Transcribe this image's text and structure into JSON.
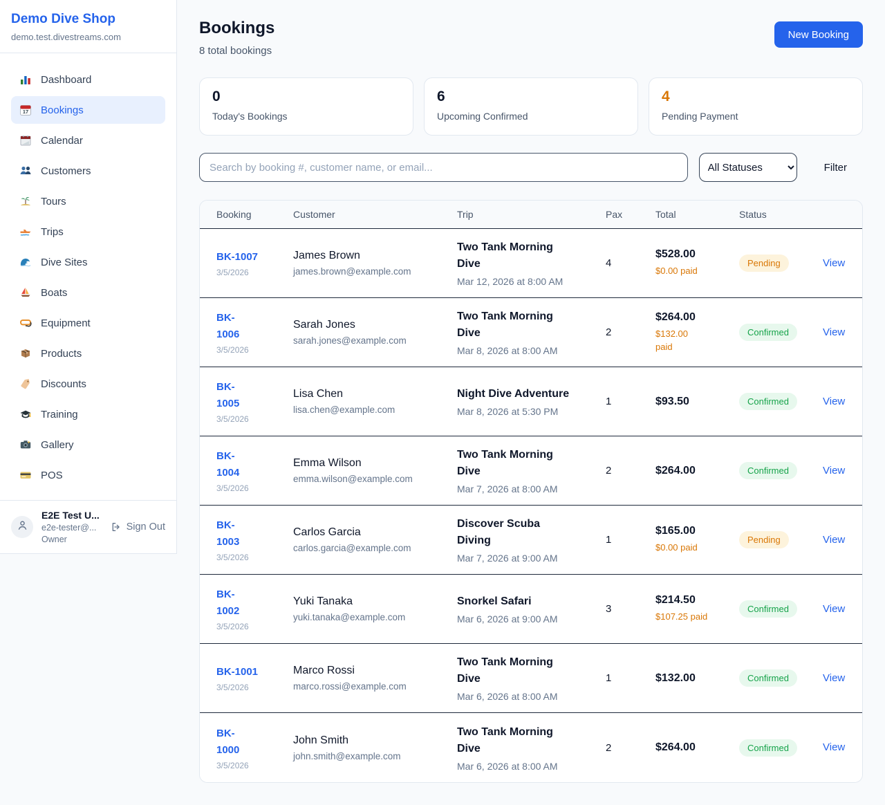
{
  "colors": {
    "accent_blue": "#2563eb",
    "pending_orange": "#d97706",
    "confirmed_green": "#16a34a"
  },
  "sidebar": {
    "brand": {
      "name": "Demo Dive Shop",
      "domain": "demo.test.divestreams.com"
    },
    "nav": [
      {
        "label": "Dashboard",
        "icon": "bar-chart-icon",
        "active": false
      },
      {
        "label": "Bookings",
        "icon": "calendar-icon",
        "active": true
      },
      {
        "label": "Calendar",
        "icon": "spiral-calendar-icon",
        "active": false
      },
      {
        "label": "Customers",
        "icon": "people-icon",
        "active": false
      },
      {
        "label": "Tours",
        "icon": "island-icon",
        "active": false
      },
      {
        "label": "Trips",
        "icon": "speedboat-icon",
        "active": false
      },
      {
        "label": "Dive Sites",
        "icon": "wave-icon",
        "active": false
      },
      {
        "label": "Boats",
        "icon": "sailboat-icon",
        "active": false
      },
      {
        "label": "Equipment",
        "icon": "diving-mask-icon",
        "active": false
      },
      {
        "label": "Products",
        "icon": "package-icon",
        "active": false
      },
      {
        "label": "Discounts",
        "icon": "label-tag-icon",
        "active": false
      },
      {
        "label": "Training",
        "icon": "graduation-cap-icon",
        "active": false
      },
      {
        "label": "Gallery",
        "icon": "camera-icon",
        "active": false
      },
      {
        "label": "POS",
        "icon": "credit-card-icon",
        "active": false
      }
    ],
    "user": {
      "name": "E2E Test U...",
      "email": "e2e-tester@...",
      "role": "Owner",
      "sign_out_label": "Sign Out"
    }
  },
  "header": {
    "title": "Bookings",
    "subtitle": "8 total bookings",
    "new_booking_label": "New Booking"
  },
  "stats": [
    {
      "value": "0",
      "label": "Today's Bookings",
      "value_color": "#0f172a"
    },
    {
      "value": "6",
      "label": "Upcoming Confirmed",
      "value_color": "#0f172a"
    },
    {
      "value": "4",
      "label": "Pending Payment",
      "value_color": "#d97706"
    }
  ],
  "filters": {
    "search_placeholder": "Search by booking #, customer name, or email...",
    "status_selected": "All Statuses",
    "filter_label": "Filter"
  },
  "table": {
    "columns": [
      "Booking",
      "Customer",
      "Trip",
      "Pax",
      "Total",
      "Status",
      ""
    ],
    "rows": [
      {
        "id": "BK-1007",
        "date": "3/5/2026",
        "customer": "James Brown",
        "email": "james.brown@example.com",
        "trip": "Two Tank Morning\nDive",
        "trip_datetime": "Mar 12, 2026 at 8:00 AM",
        "pax": "4",
        "total": "$528.00",
        "paid": "$0.00 paid",
        "status": "Pending",
        "view_label": "View"
      },
      {
        "id": "BK-\n1006",
        "date": "3/5/2026",
        "customer": "Sarah Jones",
        "email": "sarah.jones@example.com",
        "trip": "Two Tank Morning\nDive",
        "trip_datetime": "Mar 8, 2026 at 8:00 AM",
        "pax": "2",
        "total": "$264.00",
        "paid": "$132.00\npaid",
        "status": "Confirmed",
        "view_label": "View"
      },
      {
        "id": "BK-\n1005",
        "date": "3/5/2026",
        "customer": "Lisa Chen",
        "email": "lisa.chen@example.com",
        "trip": "Night Dive Adventure",
        "trip_datetime": "Mar 8, 2026 at 5:30 PM",
        "pax": "1",
        "total": "$93.50",
        "paid": "",
        "status": "Confirmed",
        "view_label": "View"
      },
      {
        "id": "BK-\n1004",
        "date": "3/5/2026",
        "customer": "Emma Wilson",
        "email": "emma.wilson@example.com",
        "trip": "Two Tank Morning\nDive",
        "trip_datetime": "Mar 7, 2026 at 8:00 AM",
        "pax": "2",
        "total": "$264.00",
        "paid": "",
        "status": "Confirmed",
        "view_label": "View"
      },
      {
        "id": "BK-\n1003",
        "date": "3/5/2026",
        "customer": "Carlos Garcia",
        "email": "carlos.garcia@example.com",
        "trip": "Discover Scuba\nDiving",
        "trip_datetime": "Mar 7, 2026 at 9:00 AM",
        "pax": "1",
        "total": "$165.00",
        "paid": "$0.00 paid",
        "status": "Pending",
        "view_label": "View"
      },
      {
        "id": "BK-\n1002",
        "date": "3/5/2026",
        "customer": "Yuki Tanaka",
        "email": "yuki.tanaka@example.com",
        "trip": "Snorkel Safari",
        "trip_datetime": "Mar 6, 2026 at 9:00 AM",
        "pax": "3",
        "total": "$214.50",
        "paid": "$107.25 paid",
        "status": "Confirmed",
        "view_label": "View"
      },
      {
        "id": "BK-1001",
        "date": "3/5/2026",
        "customer": "Marco Rossi",
        "email": "marco.rossi@example.com",
        "trip": "Two Tank Morning\nDive",
        "trip_datetime": "Mar 6, 2026 at 8:00 AM",
        "pax": "1",
        "total": "$132.00",
        "paid": "",
        "status": "Confirmed",
        "view_label": "View"
      },
      {
        "id": "BK-\n1000",
        "date": "3/5/2026",
        "customer": "John Smith",
        "email": "john.smith@example.com",
        "trip": "Two Tank Morning\nDive",
        "trip_datetime": "Mar 6, 2026 at 8:00 AM",
        "pax": "2",
        "total": "$264.00",
        "paid": "",
        "status": "Confirmed",
        "view_label": "View"
      }
    ]
  }
}
